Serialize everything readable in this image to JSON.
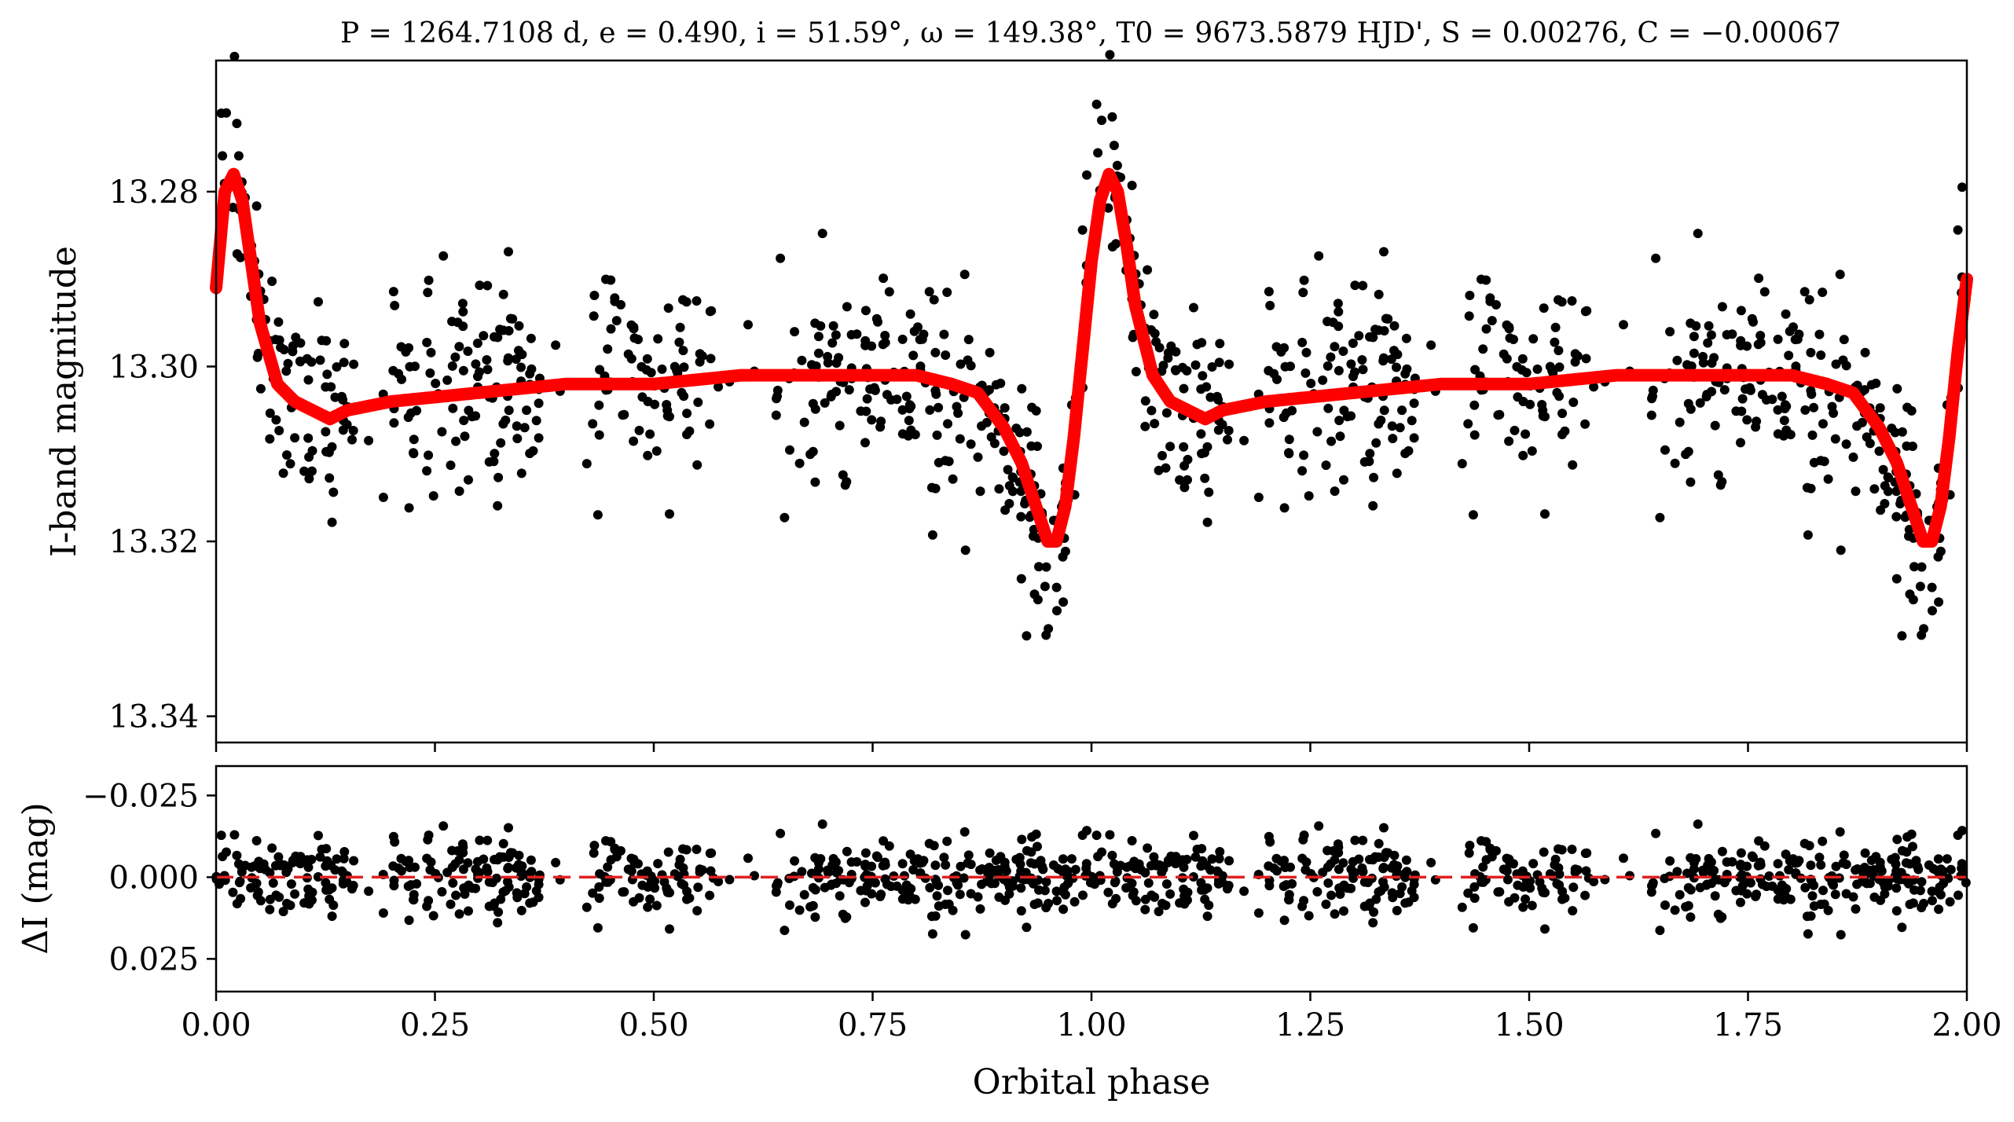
{
  "chart_data": [
    {
      "type": "scatter",
      "panel": "top",
      "title": "P = 1264.7108 d, e = 0.490, i = 51.59°, ω = 149.38°, T0 = 9673.5879 HJD', S = 0.00276, C = −0.00067",
      "xlabel": "",
      "ylabel": "I-band magnitude",
      "xlim": [
        0.0,
        2.0
      ],
      "ylim": [
        13.343,
        13.265
      ],
      "y_inverted": true,
      "ytick_labels": [
        "13.28",
        "13.30",
        "13.32",
        "13.34"
      ],
      "ytick_values": [
        13.28,
        13.3,
        13.32,
        13.34
      ],
      "series": [
        {
          "kind": "points",
          "color": "#000000",
          "noise_sd": 0.0058,
          "x": [
            0.0,
            0.01,
            0.02,
            0.03,
            0.04,
            0.05,
            0.07,
            0.09,
            0.11,
            0.13,
            0.15,
            0.18,
            0.2,
            0.22,
            0.25,
            0.28,
            0.3,
            0.32,
            0.35,
            0.38,
            0.4,
            0.42,
            0.45,
            0.48,
            0.5,
            0.52,
            0.55,
            0.58,
            0.6,
            0.62,
            0.65,
            0.68,
            0.7,
            0.72,
            0.75,
            0.78,
            0.8,
            0.82,
            0.85,
            0.88,
            0.9,
            0.92,
            0.94,
            0.95,
            0.96,
            0.97,
            0.98,
            0.99,
            1.0,
            1.01,
            1.02,
            1.03,
            1.04,
            1.05,
            1.07,
            1.09,
            1.11,
            1.13,
            1.15,
            1.18,
            1.2,
            1.22,
            1.25,
            1.28,
            1.3,
            1.32,
            1.35,
            1.38,
            1.4,
            1.42,
            1.45,
            1.48,
            1.5,
            1.52,
            1.55,
            1.58,
            1.6,
            1.62,
            1.65,
            1.68,
            1.7,
            1.72,
            1.75,
            1.78,
            1.8,
            1.82,
            1.85,
            1.88,
            1.9,
            1.92,
            1.94,
            1.95,
            1.96,
            1.97,
            1.98,
            1.99,
            2.0
          ],
          "y": [
            13.291,
            13.279,
            13.277,
            13.282,
            13.289,
            13.295,
            13.301,
            13.303,
            13.305,
            13.306,
            13.305,
            13.304,
            13.304,
            13.303,
            13.303,
            13.303,
            13.302,
            13.302,
            13.302,
            13.302,
            13.302,
            13.302,
            13.301,
            13.301,
            13.301,
            13.301,
            13.301,
            13.301,
            13.301,
            13.301,
            13.301,
            13.301,
            13.301,
            13.301,
            13.301,
            13.301,
            13.301,
            13.302,
            13.303,
            13.305,
            13.309,
            13.314,
            13.319,
            13.322,
            13.321,
            13.316,
            13.308,
            13.297,
            13.287,
            13.28,
            13.277,
            13.28,
            13.286,
            13.293,
            13.3,
            13.304,
            13.306,
            13.306,
            13.305,
            13.304,
            13.304,
            13.303,
            13.303,
            13.303,
            13.302,
            13.302,
            13.302,
            13.302,
            13.302,
            13.302,
            13.301,
            13.301,
            13.301,
            13.301,
            13.301,
            13.301,
            13.301,
            13.301,
            13.301,
            13.301,
            13.301,
            13.301,
            13.301,
            13.301,
            13.301,
            13.302,
            13.303,
            13.305,
            13.309,
            13.314,
            13.319,
            13.322,
            13.321,
            13.316,
            13.308,
            13.297,
            13.29
          ]
        },
        {
          "kind": "line",
          "color": "#ff0000",
          "x": [
            0.0,
            0.01,
            0.02,
            0.03,
            0.04,
            0.05,
            0.07,
            0.09,
            0.11,
            0.13,
            0.15,
            0.2,
            0.3,
            0.4,
            0.5,
            0.6,
            0.7,
            0.8,
            0.84,
            0.87,
            0.9,
            0.92,
            0.94,
            0.95,
            0.96,
            0.97,
            0.98,
            0.99,
            1.0,
            1.01,
            1.02,
            1.03,
            1.04,
            1.05,
            1.07,
            1.09,
            1.11,
            1.13,
            1.15,
            1.2,
            1.3,
            1.4,
            1.5,
            1.6,
            1.7,
            1.8,
            1.84,
            1.87,
            1.9,
            1.92,
            1.94,
            1.95,
            1.96,
            1.97,
            1.98,
            1.99,
            2.0
          ],
          "y": [
            13.291,
            13.28,
            13.278,
            13.281,
            13.288,
            13.295,
            13.302,
            13.304,
            13.305,
            13.306,
            13.305,
            13.304,
            13.303,
            13.302,
            13.302,
            13.301,
            13.301,
            13.301,
            13.302,
            13.303,
            13.307,
            13.311,
            13.317,
            13.32,
            13.32,
            13.316,
            13.308,
            13.298,
            13.288,
            13.281,
            13.278,
            13.28,
            13.286,
            13.293,
            13.301,
            13.304,
            13.305,
            13.306,
            13.305,
            13.304,
            13.303,
            13.302,
            13.302,
            13.301,
            13.301,
            13.301,
            13.302,
            13.303,
            13.307,
            13.311,
            13.317,
            13.32,
            13.32,
            13.316,
            13.308,
            13.298,
            13.29
          ]
        }
      ]
    },
    {
      "type": "scatter",
      "panel": "bottom",
      "xlabel": "Orbital phase",
      "ylabel": "ΔI (mag)",
      "xlim": [
        0.0,
        2.0
      ],
      "ylim": [
        0.035,
        -0.034
      ],
      "y_inverted": true,
      "xtick_labels": [
        "0.00",
        "0.25",
        "0.50",
        "0.75",
        "1.00",
        "1.25",
        "1.50",
        "1.75",
        "2.00"
      ],
      "xtick_values": [
        0.0,
        0.25,
        0.5,
        0.75,
        1.0,
        1.25,
        1.5,
        1.75,
        2.0
      ],
      "ytick_labels": [
        "−0.025",
        "0.000",
        "0.025"
      ],
      "ytick_values": [
        -0.025,
        0.0,
        0.025
      ],
      "series": [
        {
          "kind": "points",
          "color": "#000000",
          "noise_sd": 0.0058,
          "mean": 0.0
        },
        {
          "kind": "reference-line",
          "style": "dashed",
          "color": "#e02020",
          "y": 0.0
        }
      ]
    }
  ]
}
